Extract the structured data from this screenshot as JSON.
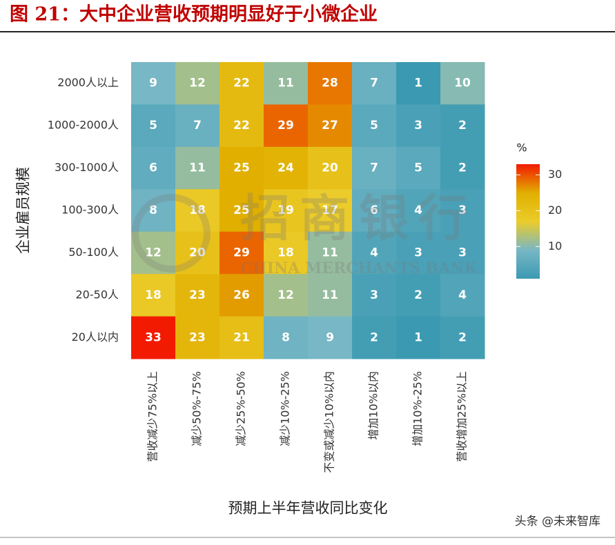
{
  "chart_data": {
    "type": "heatmap",
    "title": "图 21：大中企业营收预期明显好于小微企业",
    "x_label": "预期上半年营收同比变化",
    "y_label": "企业雇员规模",
    "x_categories": [
      "营收减少75%以上",
      "减少50%-75%",
      "减少25%-50%",
      "减少10%-25%",
      "不变或减少10%以内",
      "增加10%以内",
      "增加10%-25%",
      "营收增加25%以上"
    ],
    "y_categories": [
      "2000人以上",
      "1000-2000人",
      "300-1000人",
      "100-300人",
      "50-100人",
      "20-50人",
      "20人以内"
    ],
    "values": [
      [
        9,
        12,
        22,
        11,
        28,
        7,
        1,
        10
      ],
      [
        5,
        7,
        22,
        29,
        27,
        5,
        3,
        2
      ],
      [
        6,
        11,
        25,
        24,
        20,
        7,
        5,
        2
      ],
      [
        8,
        18,
        25,
        19,
        17,
        6,
        4,
        3
      ],
      [
        12,
        20,
        29,
        18,
        11,
        4,
        3,
        3
      ],
      [
        18,
        23,
        26,
        12,
        11,
        3,
        2,
        4
      ],
      [
        33,
        23,
        21,
        8,
        9,
        2,
        1,
        2
      ]
    ],
    "colorbar_title": "%",
    "clim": [
      1,
      33
    ],
    "cticks": [
      10,
      20,
      30
    ],
    "colors": [
      "#3b9ab2",
      "#78b7c5",
      "#ebcc2a",
      "#e1af00",
      "#f21a00"
    ],
    "watermark": [
      "招商银行",
      "CHINA MERCHANTS BANK"
    ],
    "source": "头条 @未来智库"
  }
}
